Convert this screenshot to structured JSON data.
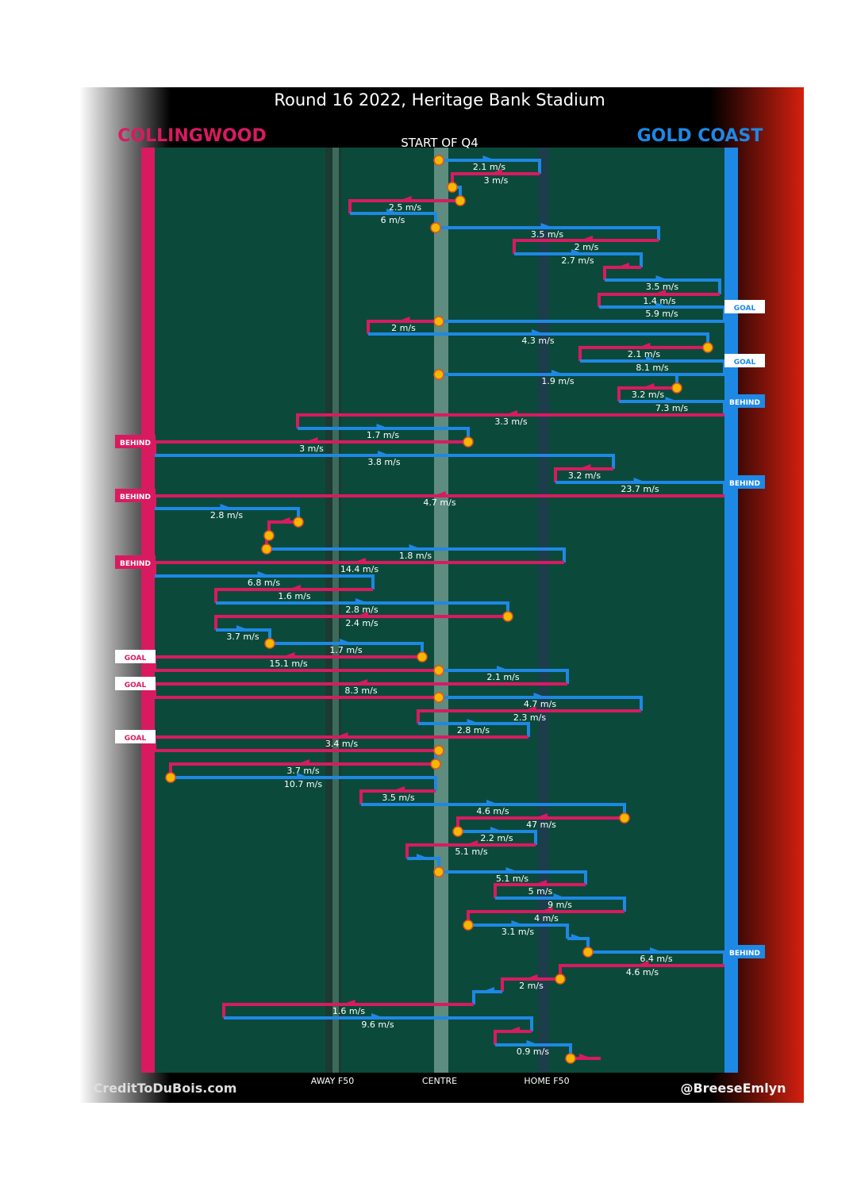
{
  "header": {
    "title": "Round 16 2022, Heritage Bank Stadium",
    "home_team": "COLLINGWOOD",
    "away_team": "GOLD COAST",
    "period": "START OF Q4"
  },
  "field_labels": [
    "AWAY F50",
    "CENTRE",
    "HOME F50"
  ],
  "footer": {
    "left": "CreditToDuBois.com",
    "right": "@BreeseEmlyn"
  },
  "colors": {
    "collingwood": "#d81b60",
    "gold_coast": "#1e88e5"
  },
  "rows": [
    {
      "speed": "2.1 m/s",
      "color": "#1e88e5"
    },
    {
      "speed": "3 m/s",
      "color": "#d81b60"
    },
    {
      "color": "#1e88e5"
    },
    {
      "speed": "2.5 m/s",
      "color": "#d81b60"
    },
    {
      "speed": "6 m/s",
      "color": "#1e88e5"
    },
    {
      "speed": "3.5 m/s",
      "color": "#1e88e5"
    },
    {
      "speed": "2 m/s",
      "color": "#d81b60"
    },
    {
      "speed": "2.7 m/s",
      "color": "#1e88e5"
    },
    {
      "color": "#d81b60"
    },
    {
      "speed": "3.5 m/s",
      "color": "#1e88e5"
    },
    {
      "speed": "1.4 m/s",
      "color": "#d81b60"
    },
    {
      "speed": "5.9 m/s",
      "color": "#1e88e5",
      "outcome": "GOAL"
    },
    {
      "speed": "2 m/s",
      "color": "#d81b60"
    },
    {
      "speed": "4.3 m/s",
      "color": "#1e88e5"
    },
    {
      "speed": "2.1 m/s",
      "color": "#d81b60"
    },
    {
      "speed": "8.1 m/s",
      "color": "#1e88e5",
      "outcome": "GOAL"
    },
    {
      "speed": "1.9 m/s",
      "color": "#1e88e5"
    },
    {
      "speed": "3.2 m/s",
      "color": "#d81b60"
    },
    {
      "speed": "7.3 m/s",
      "color": "#1e88e5",
      "outcome": "BEHIND"
    },
    {
      "speed": "3.3 m/s",
      "color": "#d81b60"
    },
    {
      "speed": "1.7 m/s",
      "color": "#1e88e5"
    },
    {
      "speed": "3 m/s",
      "color": "#d81b60",
      "outcome": "BEHIND"
    },
    {
      "speed": "3.8 m/s",
      "color": "#1e88e5"
    },
    {
      "speed": "3.2 m/s",
      "color": "#d81b60"
    },
    {
      "speed": "23.7 m/s",
      "color": "#1e88e5",
      "outcome": "BEHIND"
    },
    {
      "speed": "4.7 m/s",
      "color": "#d81b60",
      "outcome": "BEHIND"
    },
    {
      "speed": "2.8 m/s",
      "color": "#1e88e5"
    },
    {
      "color": "#d81b60"
    },
    {
      "color": "#d81b60"
    },
    {
      "speed": "1.8 m/s",
      "color": "#1e88e5"
    },
    {
      "speed": "14.4 m/s",
      "color": "#d81b60",
      "outcome": "BEHIND"
    },
    {
      "speed": "6.8 m/s",
      "color": "#1e88e5"
    },
    {
      "speed": "1.6 m/s",
      "color": "#d81b60"
    },
    {
      "speed": "2.8 m/s",
      "color": "#1e88e5"
    },
    {
      "speed": "2.4 m/s",
      "color": "#d81b60"
    },
    {
      "speed": "3.7 m/s",
      "color": "#1e88e5"
    },
    {
      "speed": "1.7 m/s",
      "color": "#1e88e5"
    },
    {
      "speed": "15.1 m/s",
      "color": "#d81b60",
      "outcome": "GOAL"
    },
    {
      "speed": "2.1 m/s",
      "color": "#1e88e5"
    },
    {
      "speed": "8.3 m/s",
      "color": "#d81b60",
      "outcome": "GOAL"
    },
    {
      "speed": "4.7 m/s",
      "color": "#1e88e5"
    },
    {
      "speed": "2.3 m/s",
      "color": "#d81b60"
    },
    {
      "speed": "2.8 m/s",
      "color": "#1e88e5"
    },
    {
      "speed": "3.4 m/s",
      "color": "#d81b60",
      "outcome": "GOAL"
    },
    {
      "color": "#1e88e5"
    },
    {
      "speed": "3.7 m/s",
      "color": "#d81b60"
    },
    {
      "speed": "10.7 m/s",
      "color": "#1e88e5"
    },
    {
      "speed": "3.5 m/s",
      "color": "#d81b60"
    },
    {
      "speed": "4.6 m/s",
      "color": "#1e88e5"
    },
    {
      "speed": "47 m/s",
      "color": "#d81b60"
    },
    {
      "speed": "2.2 m/s",
      "color": "#1e88e5"
    },
    {
      "speed": "5.1 m/s",
      "color": "#d81b60"
    },
    {
      "color": "#1e88e5"
    },
    {
      "speed": "5.1 m/s",
      "color": "#1e88e5"
    },
    {
      "speed": "5 m/s",
      "color": "#d81b60"
    },
    {
      "speed": "9 m/s",
      "color": "#1e88e5"
    },
    {
      "speed": "4 m/s",
      "color": "#d81b60"
    },
    {
      "speed": "3.1 m/s",
      "color": "#1e88e5"
    },
    {
      "color": "#1e88e5"
    },
    {
      "speed": "6.4 m/s",
      "color": "#1e88e5",
      "outcome": "BEHIND"
    },
    {
      "speed": "4.6 m/s",
      "color": "#d81b60"
    },
    {
      "speed": "2 m/s",
      "color": "#d81b60"
    },
    {
      "color": "#1e88e5"
    },
    {
      "speed": "1.6 m/s",
      "color": "#d81b60"
    },
    {
      "speed": "9.6 m/s",
      "color": "#1e88e5"
    },
    {
      "color": "#d81b60"
    },
    {
      "speed": "0.9 m/s",
      "color": "#1e88e5"
    },
    {
      "color": "#d81b60"
    }
  ]
}
